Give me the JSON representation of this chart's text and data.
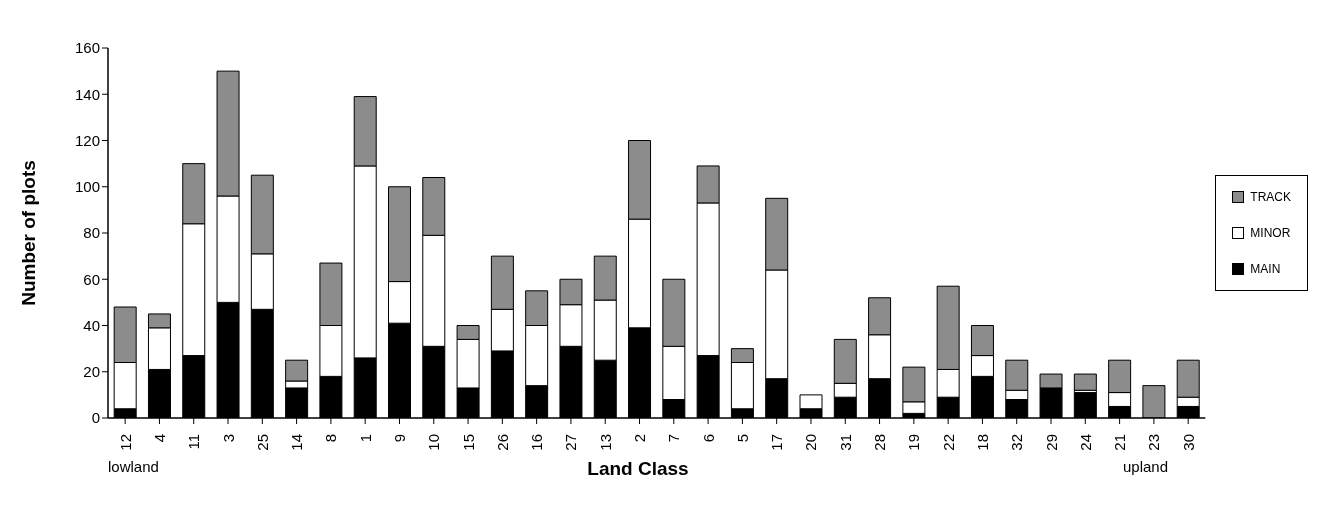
{
  "chart_data": {
    "type": "bar",
    "stacked": true,
    "xlabel": "Land Class",
    "ylabel": "Number of plots",
    "annotations": [
      "lowland",
      "upland"
    ],
    "categories": [
      "12",
      "4",
      "11",
      "3",
      "25",
      "14",
      "8",
      "1",
      "9",
      "10",
      "15",
      "26",
      "16",
      "27",
      "13",
      "2",
      "7",
      "6",
      "5",
      "17",
      "20",
      "31",
      "28",
      "19",
      "22",
      "18",
      "32",
      "29",
      "24",
      "21",
      "23",
      "30"
    ],
    "series": [
      {
        "name": "MAIN",
        "color": "#000000",
        "values": [
          4,
          21,
          27,
          50,
          47,
          13,
          18,
          26,
          41,
          31,
          13,
          29,
          14,
          31,
          25,
          39,
          8,
          27,
          4,
          17,
          4,
          9,
          17,
          2,
          9,
          18,
          8,
          13,
          11,
          5,
          0,
          5
        ]
      },
      {
        "name": "MINOR",
        "color": "#ffffff",
        "values": [
          20,
          18,
          57,
          46,
          24,
          3,
          22,
          83,
          18,
          48,
          21,
          18,
          26,
          18,
          26,
          47,
          23,
          66,
          20,
          47,
          6,
          6,
          19,
          5,
          12,
          9,
          4,
          0,
          1,
          6,
          0,
          4
        ]
      },
      {
        "name": "TRACK",
        "color": "#8c8c8c",
        "values": [
          24,
          6,
          26,
          54,
          34,
          9,
          27,
          30,
          41,
          25,
          6,
          23,
          15,
          11,
          19,
          34,
          29,
          16,
          6,
          31,
          0,
          19,
          16,
          15,
          36,
          13,
          13,
          6,
          7,
          14,
          14,
          16
        ]
      }
    ],
    "ylim": [
      0,
      160
    ],
    "yticks": [
      0,
      20,
      40,
      60,
      80,
      100,
      120,
      140,
      160
    ],
    "legend": "right"
  }
}
